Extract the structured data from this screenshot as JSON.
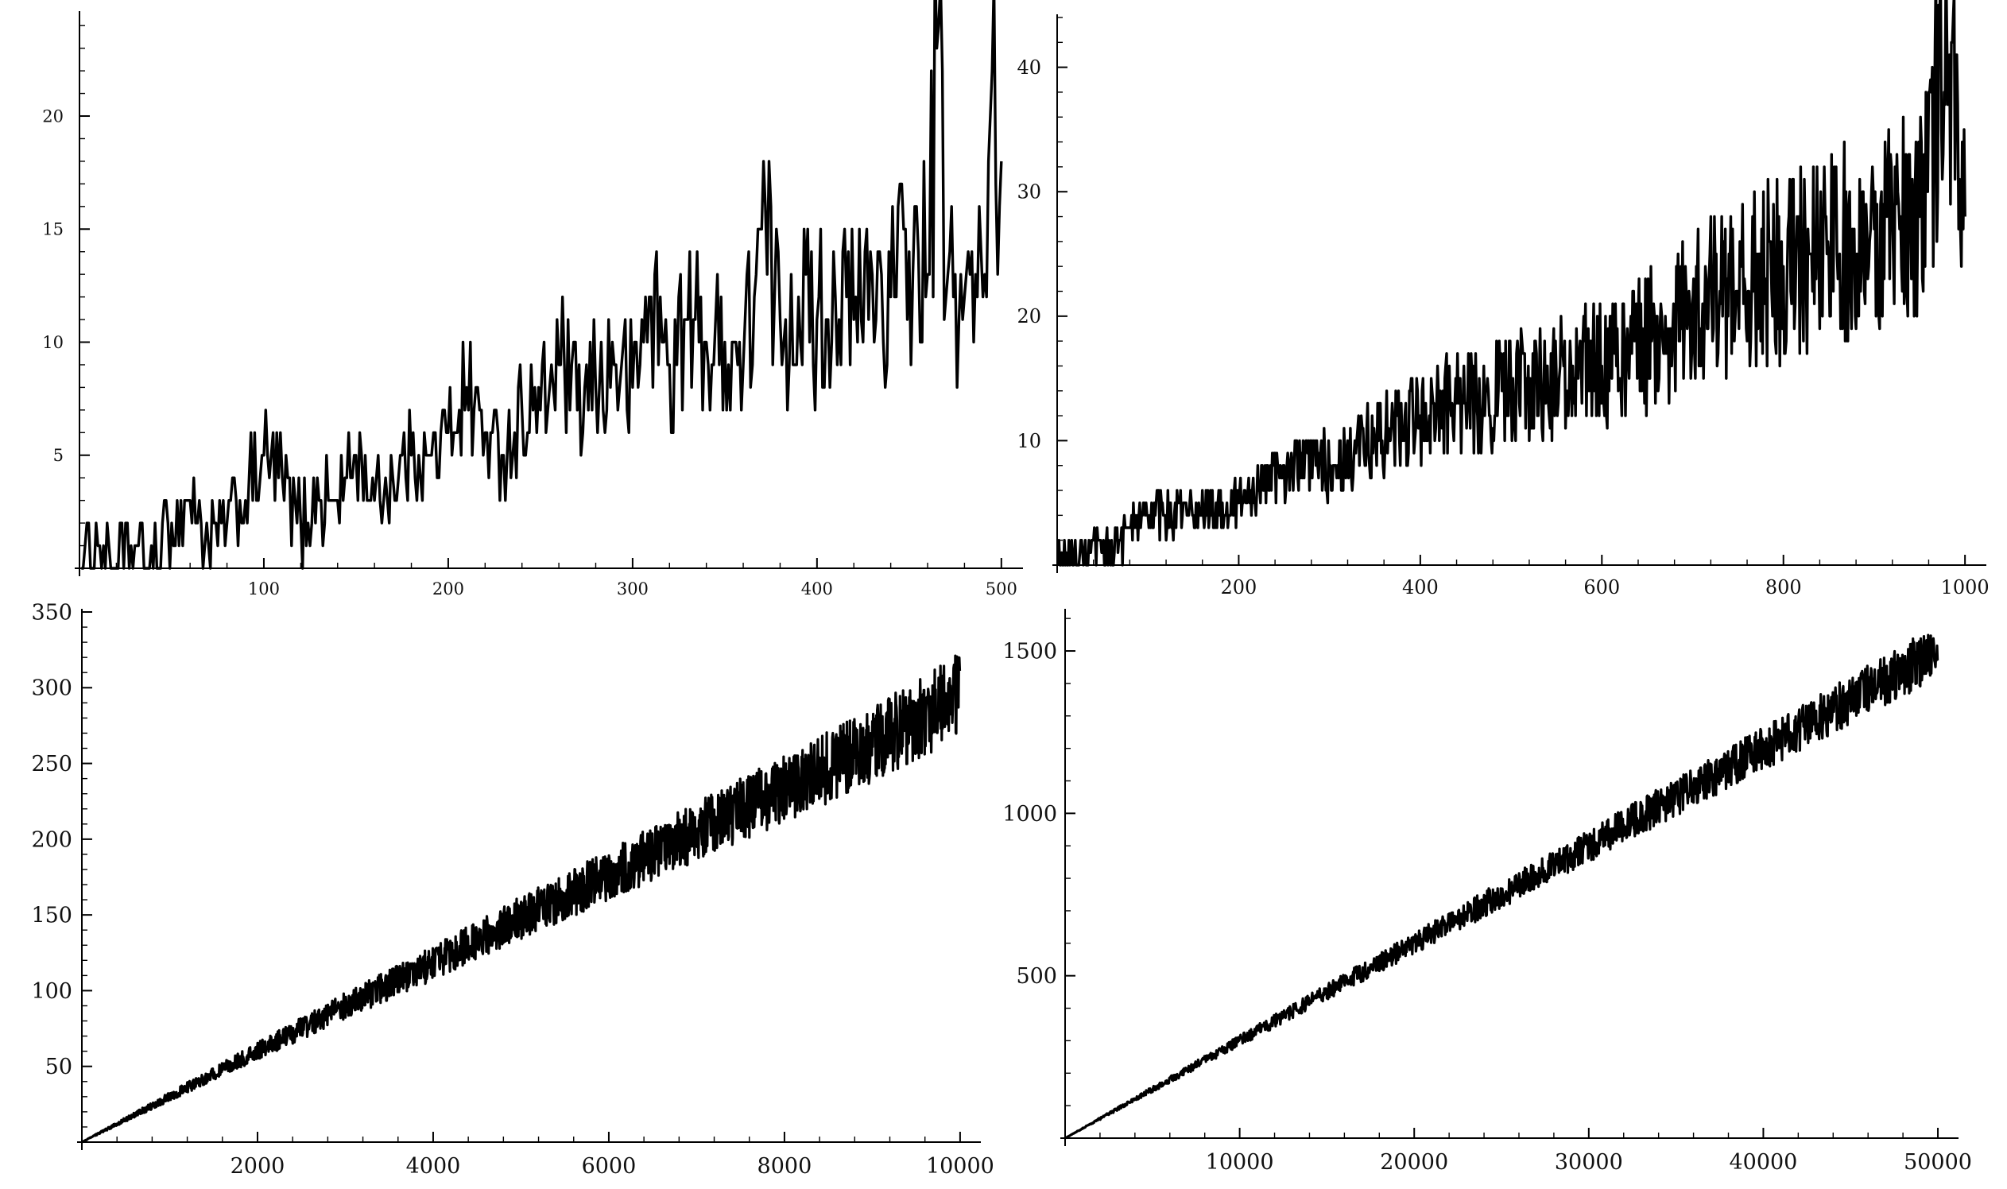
{
  "chart_data": [
    {
      "type": "line",
      "title": "",
      "xlabel": "",
      "ylabel": "",
      "xlim": [
        0,
        510
      ],
      "ylim": [
        0,
        24.5
      ],
      "grid": false,
      "x_ticks": [
        100,
        200,
        300,
        400,
        500
      ],
      "y_ticks": [
        5,
        10,
        15,
        20
      ],
      "x_tick_labels": [
        "100",
        "200",
        "300",
        "400",
        "500"
      ],
      "y_tick_labels": [
        "5",
        "10",
        "15",
        "20"
      ],
      "series": [
        {
          "color": "#000000",
          "x": [
            1,
            10,
            20,
            30,
            40,
            50,
            60,
            70,
            80,
            90,
            100,
            110,
            120,
            130,
            140,
            150,
            160,
            170,
            180,
            190,
            200,
            210,
            220,
            230,
            240,
            250,
            260,
            270,
            280,
            290,
            300,
            310,
            320,
            330,
            340,
            350,
            360,
            370,
            380,
            390,
            400,
            410,
            420,
            430,
            440,
            450,
            460,
            466,
            470,
            480,
            490,
            495,
            500
          ],
          "y": [
            0,
            1,
            0,
            1,
            0,
            2,
            3,
            1,
            2,
            3,
            5,
            4,
            2,
            3,
            3,
            5,
            3,
            4,
            5,
            5,
            6,
            8,
            6,
            5,
            7,
            7,
            9,
            7,
            8,
            9,
            8,
            12,
            9,
            11,
            10,
            10,
            9,
            15,
            11,
            12,
            11,
            12,
            11,
            13,
            12,
            14,
            13,
            24,
            12,
            12,
            12,
            22,
            18
          ]
        }
      ]
    },
    {
      "type": "line",
      "title": "",
      "xlabel": "",
      "ylabel": "",
      "xlim": [
        0,
        1020
      ],
      "ylim": [
        0,
        44
      ],
      "grid": false,
      "x_ticks": [
        200,
        400,
        600,
        800,
        1000
      ],
      "y_ticks": [
        10,
        20,
        30,
        40
      ],
      "x_tick_labels": [
        "200",
        "400",
        "600",
        "800",
        "1000"
      ],
      "y_tick_labels": [
        "10",
        "20",
        "30",
        "40"
      ],
      "series": [
        {
          "color": "#000000",
          "x": [
            1,
            50,
            100,
            150,
            200,
            250,
            300,
            350,
            400,
            450,
            500,
            550,
            600,
            650,
            700,
            750,
            800,
            850,
            900,
            950,
            980,
            1000
          ],
          "y": [
            0,
            1,
            4,
            4,
            5,
            8,
            8,
            10,
            12,
            13,
            14,
            15,
            16,
            18,
            21,
            22,
            24,
            25,
            27,
            28,
            43,
            28
          ]
        }
      ]
    },
    {
      "type": "line",
      "title": "",
      "xlabel": "",
      "ylabel": "",
      "xlim": [
        0,
        10200
      ],
      "ylim": [
        0,
        350
      ],
      "grid": false,
      "x_ticks": [
        2000,
        4000,
        6000,
        8000,
        10000
      ],
      "y_ticks": [
        50,
        100,
        150,
        200,
        250,
        300,
        350
      ],
      "x_tick_labels": [
        "2000",
        "4000",
        "6000",
        "8000",
        "10000"
      ],
      "y_tick_labels": [
        "50",
        "100",
        "150",
        "200",
        "250",
        "300",
        "350"
      ],
      "series": [
        {
          "color": "#000000",
          "x": [
            1,
            1000,
            2000,
            3000,
            4000,
            5000,
            6000,
            7000,
            8000,
            9000,
            10000
          ],
          "y": [
            0,
            30,
            60,
            90,
            118,
            148,
            176,
            205,
            233,
            262,
            295
          ]
        }
      ]
    },
    {
      "type": "line",
      "title": "",
      "xlabel": "",
      "ylabel": "",
      "xlim": [
        0,
        51000
      ],
      "ylim": [
        0,
        1620
      ],
      "grid": false,
      "x_ticks": [
        10000,
        20000,
        30000,
        40000,
        50000
      ],
      "y_ticks": [
        500,
        1000,
        1500
      ],
      "x_tick_labels": [
        "10000",
        "20000",
        "30000",
        "40000",
        "50000"
      ],
      "y_tick_labels": [
        "500",
        "1000",
        "1500"
      ],
      "series": [
        {
          "color": "#000000",
          "x": [
            1,
            10000,
            20000,
            30000,
            40000,
            50000
          ],
          "y": [
            0,
            300,
            600,
            900,
            1200,
            1500
          ]
        }
      ]
    }
  ]
}
